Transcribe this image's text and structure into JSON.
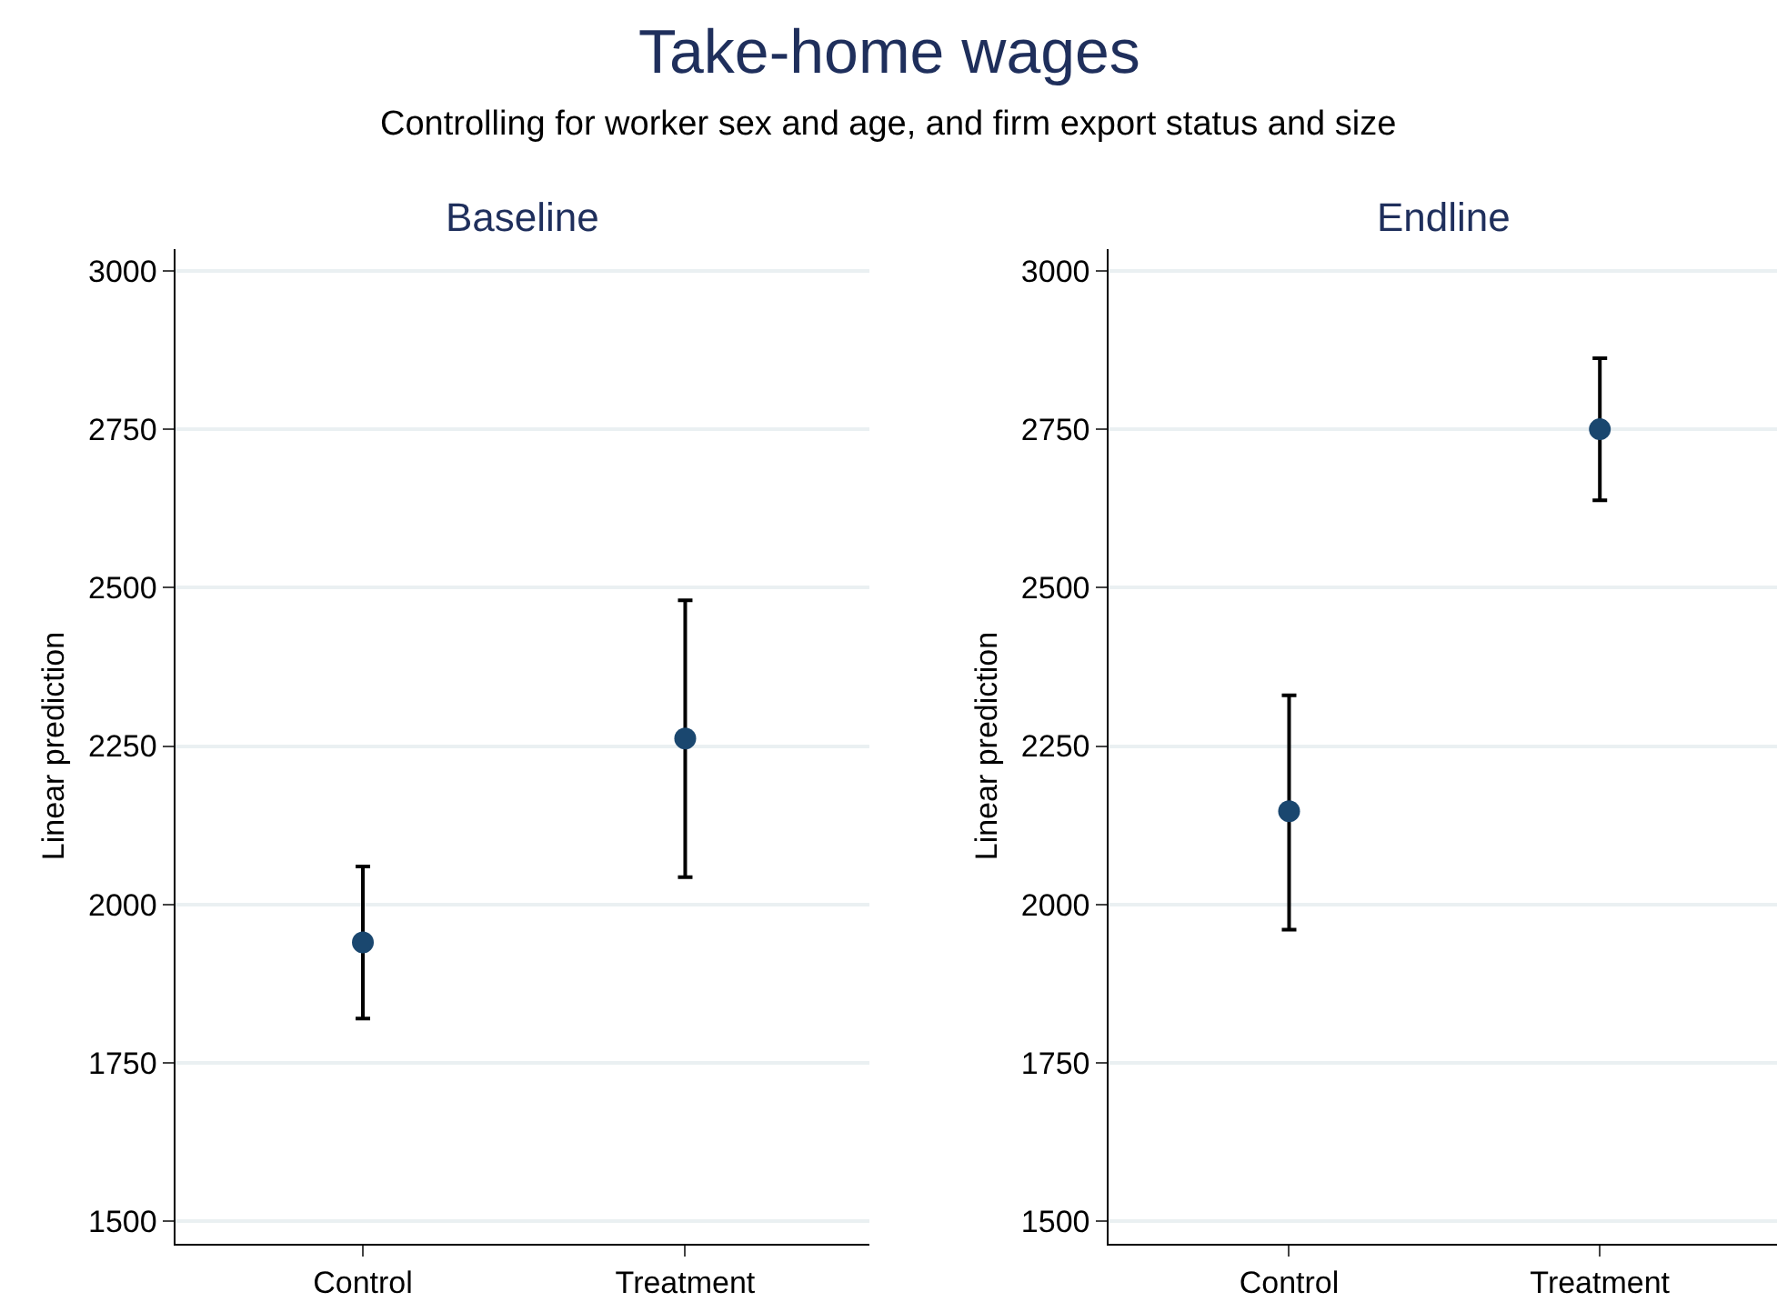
{
  "chart_data": [
    {
      "type": "other",
      "title": "Take-home wages",
      "subtitle": "Controlling for worker sex and age, and firm export status and size"
    },
    {
      "type": "scatter",
      "title": "Baseline",
      "ylabel": "Linear prediction",
      "categories": [
        "Control",
        "Treatment"
      ],
      "series": [
        {
          "color": "#1a476f",
          "values": [
            1940,
            2262
          ],
          "errors": [
            [
              1820,
              2060
            ],
            [
              2043,
              2480
            ]
          ]
        }
      ],
      "ylim": [
        1465,
        3035
      ],
      "yticks": [
        1500,
        1750,
        2000,
        2250,
        2500,
        2750,
        3000
      ],
      "grid": "y",
      "marker": "circle"
    },
    {
      "type": "scatter",
      "title": "Endline",
      "ylabel": "Linear prediction",
      "categories": [
        "Control",
        "Treatment"
      ],
      "series": [
        {
          "color": "#1a476f",
          "values": [
            2147,
            2750
          ],
          "errors": [
            [
              1960,
              2330
            ],
            [
              2638,
              2862
            ]
          ]
        }
      ],
      "ylim": [
        1465,
        3035
      ],
      "yticks": [
        1500,
        1750,
        2000,
        2250,
        2500,
        2750,
        3000
      ],
      "grid": "y",
      "marker": "circle"
    }
  ]
}
